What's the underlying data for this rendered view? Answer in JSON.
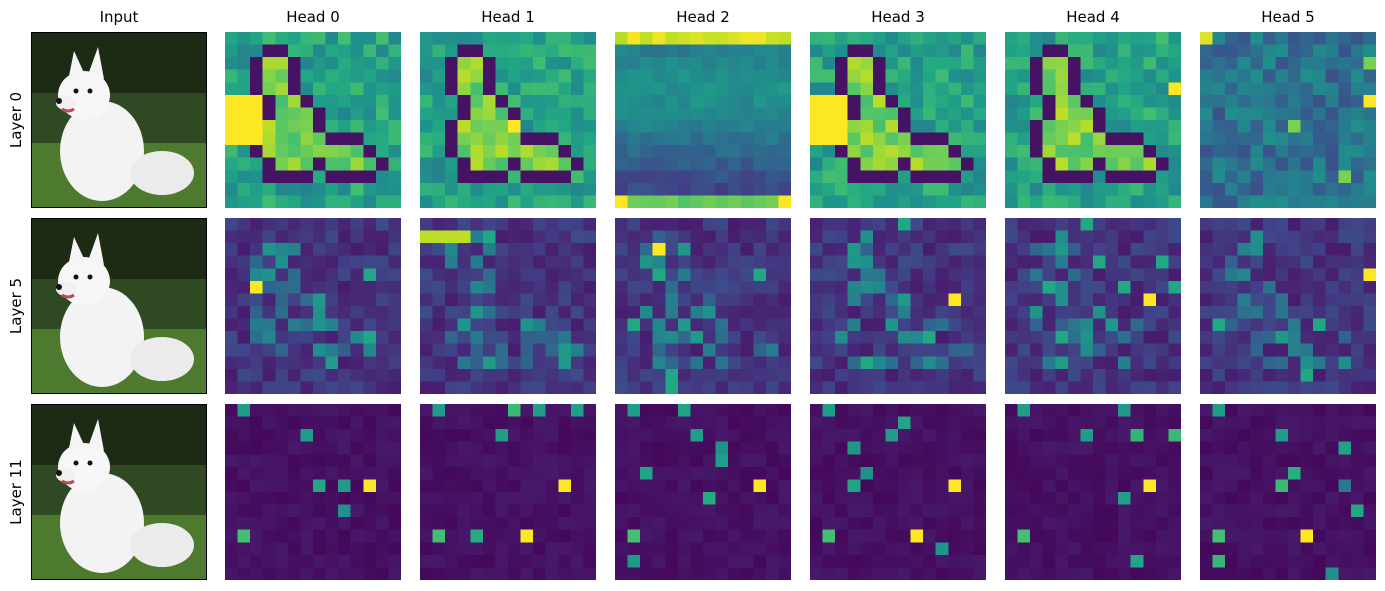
{
  "columns": [
    "Input",
    "Head 0",
    "Head 1",
    "Head 2",
    "Head 3",
    "Head 4",
    "Head 5"
  ],
  "rows": [
    "Layer 0",
    "Layer 5",
    "Layer 11"
  ],
  "chart_data": {
    "type": "heatmap",
    "colormap": "viridis",
    "grid": "14x14 attention patches",
    "rows": [
      "Layer 0",
      "Layer 5",
      "Layer 11"
    ],
    "columns": [
      "Head 0",
      "Head 1",
      "Head 2",
      "Head 3",
      "Head 4",
      "Head 5"
    ],
    "input_image": "white fluffy dog sitting on grass",
    "description": "Attention maps per layer (rows) and head (columns)"
  },
  "image_subject": "dog-photo"
}
